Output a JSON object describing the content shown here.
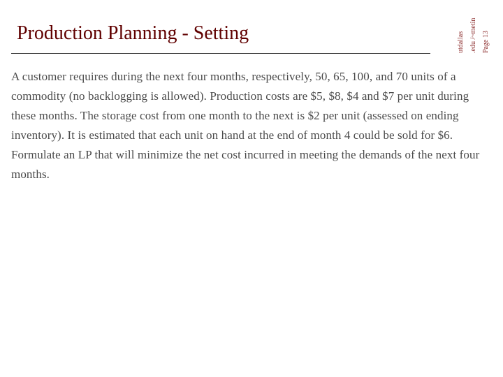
{
  "colors": {
    "title": "#600000",
    "body": "#4a4a4a",
    "rule": "#303030",
    "side": "#8a2a2a",
    "bg": "#ffffff"
  },
  "title": "Production Planning - Setting",
  "body": "A customer requires during the next four months, respectively, 50, 65, 100, and 70 units of a commodity (no backlogging is allowed). Production costs are $5, $8, $4 and $7 per unit during these months. The storage cost from one month to the next is $2 per unit (assessed on ending inventory). It is estimated that each unit on hand at the end of month 4 could be sold for $6. Formulate an LP that will minimize the net cost incurred in meeting the demands of the next four months.",
  "side": {
    "line1": "utdallas",
    "line2": ".edu /~metin",
    "line3": "Page 13"
  }
}
